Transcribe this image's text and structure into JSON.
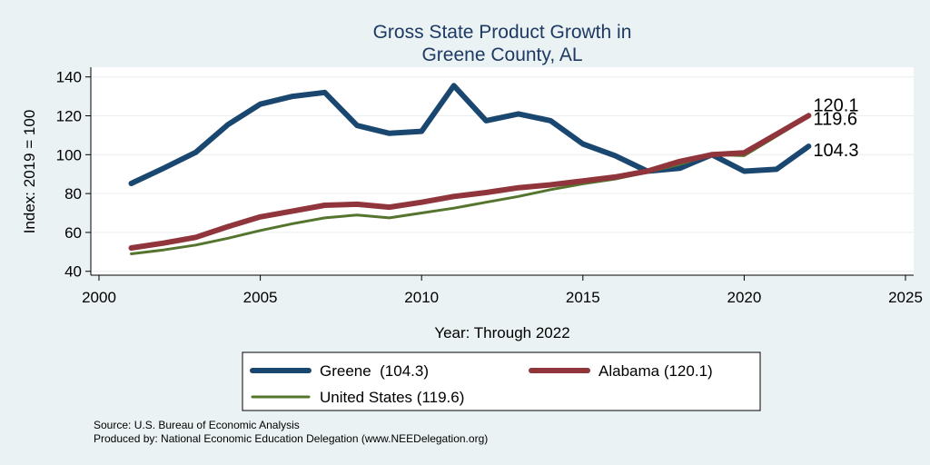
{
  "chart_data": {
    "type": "line",
    "title": "Gross State Product Growth in",
    "subtitle": "Greene County, AL",
    "xlabel": "Year: Through 2022",
    "ylabel": "Index: 2019 = 100",
    "xlim": [
      2000,
      2025
    ],
    "ylim": [
      38,
      145
    ],
    "xticks": [
      "2000",
      "2005",
      "2010",
      "2015",
      "2020",
      "2025"
    ],
    "yticks": [
      "40",
      "60",
      "80",
      "100",
      "120",
      "140"
    ],
    "grid": true,
    "x": [
      2001,
      2002,
      2003,
      2004,
      2005,
      2006,
      2007,
      2008,
      2009,
      2010,
      2011,
      2012,
      2013,
      2014,
      2015,
      2016,
      2017,
      2018,
      2019,
      2020,
      2021,
      2022
    ],
    "series": [
      {
        "name": "Greene  (104.3)",
        "color": "#1a476f",
        "values": [
          85.2,
          93.0,
          101.2,
          115.5,
          126.0,
          130.0,
          132.0,
          115.0,
          111.0,
          112.0,
          135.5,
          117.5,
          121.0,
          117.5,
          105.5,
          99.5,
          91.5,
          93.0,
          100.0,
          91.5,
          92.5,
          104.3
        ],
        "end_label": "104.3"
      },
      {
        "name": "Alabama (120.1)",
        "color": "#90353b",
        "values": [
          52.0,
          54.5,
          57.5,
          63.0,
          68.0,
          71.0,
          74.0,
          74.5,
          73.0,
          75.5,
          78.5,
          80.5,
          83.0,
          84.5,
          86.5,
          88.5,
          91.5,
          96.5,
          100.0,
          101.0,
          110.5,
          120.1
        ],
        "end_label": "120.1"
      },
      {
        "name": "United States (119.6)",
        "color": "#55752f",
        "values": [
          49.0,
          51.0,
          53.5,
          57.0,
          61.0,
          64.5,
          67.5,
          69.0,
          67.5,
          70.0,
          72.5,
          75.5,
          78.5,
          82.0,
          85.0,
          87.5,
          91.0,
          95.0,
          100.0,
          99.5,
          109.5,
          119.6
        ],
        "end_label": "119.6"
      }
    ],
    "legend_position": "bottom",
    "notes": [
      "Source: U.S. Bureau of Economic Analysis",
      "Produced by: National Economic Education Delegation (www.NEEDelegation.org)"
    ]
  }
}
